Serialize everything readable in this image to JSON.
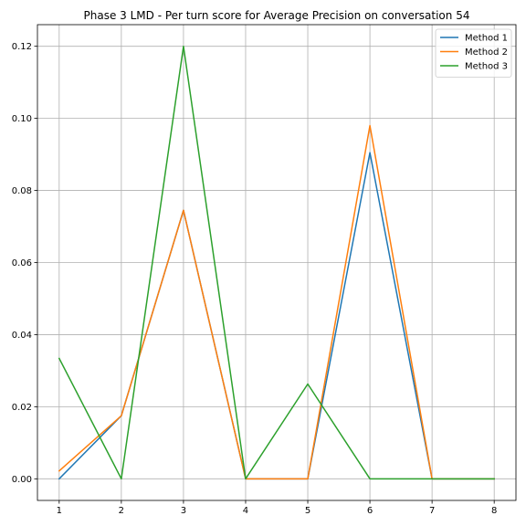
{
  "chart_data": {
    "type": "line",
    "title": "Phase 3 LMD - Per turn score for Average Precision on conversation 54",
    "xlabel": "",
    "ylabel": "",
    "x": [
      1,
      2,
      3,
      4,
      5,
      6,
      7,
      8
    ],
    "xticks": [
      "1",
      "2",
      "3",
      "4",
      "5",
      "6",
      "7",
      "8"
    ],
    "yticks": [
      "0.00",
      "0.02",
      "0.04",
      "0.06",
      "0.08",
      "0.10",
      "0.12"
    ],
    "ylim": [
      -0.006,
      0.126
    ],
    "xlim": [
      0.65,
      8.35
    ],
    "grid": true,
    "legend_position": "top-right",
    "series": [
      {
        "name": "Method 1",
        "color": "#1f77b4",
        "values": [
          0.0,
          0.0175,
          0.0745,
          0.0,
          0.0,
          0.0905,
          0.0,
          0.0
        ]
      },
      {
        "name": "Method 2",
        "color": "#ff7f0e",
        "values": [
          0.0022,
          0.0175,
          0.0745,
          0.0,
          0.0,
          0.098,
          0.0,
          0.0
        ]
      },
      {
        "name": "Method 3",
        "color": "#2ca02c",
        "values": [
          0.0334,
          0.0,
          0.12,
          0.0,
          0.0263,
          0.0,
          0.0,
          0.0
        ]
      }
    ]
  }
}
